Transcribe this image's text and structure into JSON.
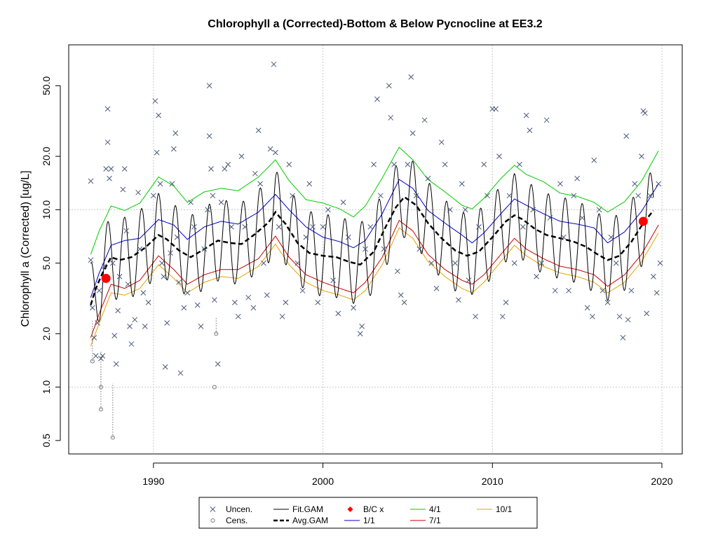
{
  "chart_data": {
    "type": "line",
    "title": "Chlorophyll a (Corrected)-Bottom & Below Pycnocline at EE3.2",
    "xlabel": "",
    "ylabel": "Chlorophyll a (Corrected) [ug/L]",
    "xlim": [
      1985.0,
      2021.2
    ],
    "ylim": [
      0.42,
      85
    ],
    "y_scale": "log",
    "x_ticks": [
      1990,
      2000,
      2010,
      2020
    ],
    "y_ticks": [
      0.5,
      1.0,
      2.0,
      5.0,
      10.0,
      20.0,
      50.0
    ],
    "y_tick_labels": [
      "0.5",
      "1.0",
      "2.0",
      "5.0",
      "10.0",
      "20.0",
      "50.0"
    ],
    "grid": true,
    "legend_position": "bottom",
    "colors": {
      "points": "#4a5a7a",
      "fit_gam": "#000000",
      "avg_gam": "#000000",
      "jan1": "#0000cc",
      "apr1": "#00cc00",
      "jul1": "#cc0000",
      "oct1": "#e6a000",
      "bc": "#ff0000",
      "grid": "#c8c8c8"
    },
    "legend": [
      {
        "label": "Uncen.",
        "style": "cross"
      },
      {
        "label": "Cens.",
        "style": "circle"
      },
      {
        "label": "Fit.GAM",
        "style": "solid-black"
      },
      {
        "label": "Avg.GAM",
        "style": "dashed-black"
      },
      {
        "label": "B/C x",
        "style": "red-diamond"
      },
      {
        "label": "1/1",
        "style": "blue-line"
      },
      {
        "label": "4/1",
        "style": "green-line"
      },
      {
        "label": "7/1",
        "style": "red-line"
      },
      {
        "label": "10/1",
        "style": "orange-line"
      }
    ],
    "avg_gam": {
      "x": [
        1986.3,
        1986.6,
        1987.0,
        1987.5,
        1988.0,
        1988.7,
        1989.5,
        1990.3,
        1990.8,
        1991.5,
        1992.2,
        1993.0,
        1993.8,
        1994.5,
        1995.2,
        1996.0,
        1996.8,
        1997.2,
        1997.8,
        1998.5,
        1999.2,
        2000.0,
        2000.8,
        2001.5,
        2002.2,
        2003.0,
        2003.7,
        2004.3,
        2004.8,
        2005.5,
        2006.2,
        2007.0,
        2007.8,
        2008.5,
        2009.2,
        2010.0,
        2010.8,
        2011.3,
        2011.8,
        2012.5,
        2013.2,
        2014.0,
        2014.8,
        2015.5,
        2016.2,
        2016.8,
        2017.5,
        2018.2,
        2018.9,
        2019.5
      ],
      "y": [
        2.9,
        3.6,
        4.4,
        5.4,
        5.2,
        5.4,
        6.1,
        7.2,
        6.8,
        5.9,
        5.4,
        6.0,
        6.7,
        6.5,
        6.4,
        7.3,
        8.5,
        9.7,
        8.3,
        6.5,
        5.7,
        5.5,
        5.4,
        5.1,
        4.9,
        5.8,
        8.0,
        10.3,
        11.8,
        10.6,
        8.4,
        6.9,
        5.9,
        5.5,
        5.8,
        7.0,
        8.6,
        9.3,
        8.8,
        7.8,
        7.2,
        6.9,
        6.6,
        6.2,
        5.6,
        5.2,
        5.5,
        6.6,
        8.4,
        9.9
      ]
    },
    "fit_gam": {
      "peak_month": 0.3,
      "trough_month": 0.7,
      "upper_ratio": 1.35,
      "lower_ratio": 0.62
    },
    "seasonal_1_1": {
      "x": [
        1986.3,
        1986.8,
        1987.5,
        1988.3,
        1989.2,
        1990.3,
        1991.2,
        1992.0,
        1993.0,
        1994.0,
        1995.0,
        1996.2,
        1997.2,
        1998.0,
        1999.0,
        2000.0,
        2001.0,
        2001.8,
        2002.5,
        2003.5,
        2004.5,
        2005.3,
        2006.2,
        2007.2,
        2008.2,
        2008.8,
        2009.5,
        2010.5,
        2011.3,
        2012.0,
        2013.0,
        2014.0,
        2015.0,
        2016.0,
        2016.8,
        2017.8,
        2018.8,
        2019.8
      ],
      "y": [
        3.2,
        4.4,
        6.3,
        6.7,
        6.9,
        8.8,
        8.2,
        6.8,
        8.0,
        8.6,
        8.3,
        9.7,
        12.2,
        10.0,
        8.0,
        7.0,
        6.6,
        6.1,
        6.7,
        9.5,
        14.8,
        13.2,
        9.9,
        8.4,
        7.2,
        6.5,
        7.4,
        9.5,
        11.5,
        10.6,
        9.5,
        8.6,
        8.3,
        7.9,
        6.5,
        7.5,
        9.8,
        14.0
      ]
    },
    "seasonal_4_1": {
      "x": [
        1986.3,
        1986.8,
        1987.5,
        1988.3,
        1989.2,
        1990.3,
        1991.2,
        1992.0,
        1993.0,
        1994.0,
        1995.0,
        1996.2,
        1997.2,
        1998.0,
        1999.0,
        2000.0,
        2001.0,
        2001.8,
        2002.5,
        2003.5,
        2004.5,
        2005.3,
        2006.2,
        2007.2,
        2008.2,
        2008.8,
        2009.5,
        2010.5,
        2011.3,
        2012.0,
        2013.0,
        2014.0,
        2015.0,
        2016.0,
        2016.8,
        2017.8,
        2018.8,
        2019.8
      ],
      "y": [
        5.6,
        7.6,
        10.5,
        9.9,
        10.9,
        15.3,
        13.6,
        11.0,
        12.6,
        13.2,
        12.8,
        15.3,
        19.1,
        14.6,
        11.4,
        10.9,
        10.1,
        9.1,
        10.5,
        15.1,
        22.5,
        19.1,
        14.8,
        12.6,
        10.6,
        10.1,
        11.6,
        15.0,
        17.8,
        15.8,
        14.4,
        12.4,
        11.9,
        11.0,
        9.7,
        11.1,
        14.5,
        21.5
      ]
    },
    "seasonal_7_1": {
      "x": [
        1986.3,
        1986.8,
        1987.5,
        1988.3,
        1989.2,
        1990.3,
        1991.2,
        1992.0,
        1993.0,
        1994.0,
        1995.0,
        1996.2,
        1997.2,
        1998.0,
        1999.0,
        2000.0,
        2001.0,
        2001.8,
        2002.5,
        2003.5,
        2004.5,
        2005.3,
        2006.2,
        2007.2,
        2008.2,
        2008.8,
        2009.5,
        2010.5,
        2011.3,
        2012.0,
        2013.0,
        2014.0,
        2015.0,
        2016.0,
        2016.8,
        2017.8,
        2018.8,
        2019.8
      ],
      "y": [
        1.9,
        2.6,
        3.8,
        3.6,
        4.0,
        5.5,
        4.6,
        3.8,
        4.3,
        4.6,
        4.6,
        5.3,
        7.1,
        5.4,
        4.3,
        3.9,
        3.6,
        3.4,
        3.9,
        5.4,
        8.7,
        7.6,
        5.6,
        4.6,
        4.0,
        3.8,
        4.3,
        5.6,
        6.9,
        6.0,
        5.3,
        4.8,
        4.6,
        4.3,
        3.7,
        4.3,
        5.6,
        8.2
      ]
    },
    "seasonal_10_1": {
      "x": [
        1986.3,
        1986.8,
        1987.5,
        1988.3,
        1989.2,
        1990.3,
        1991.2,
        1992.0,
        1993.0,
        1994.0,
        1995.0,
        1996.2,
        1997.2,
        1998.0,
        1999.0,
        2000.0,
        2001.0,
        2001.8,
        2002.5,
        2003.5,
        2004.5,
        2005.3,
        2006.2,
        2007.2,
        2008.2,
        2008.8,
        2009.5,
        2010.5,
        2011.3,
        2012.0,
        2013.0,
        2014.0,
        2015.0,
        2016.0,
        2016.8,
        2017.8,
        2018.8,
        2019.8
      ],
      "y": [
        1.7,
        2.3,
        3.4,
        3.3,
        3.6,
        4.9,
        4.1,
        3.4,
        3.9,
        4.2,
        4.1,
        4.8,
        6.4,
        4.9,
        3.9,
        3.5,
        3.3,
        3.1,
        3.5,
        4.9,
        7.9,
        6.9,
        5.1,
        4.2,
        3.6,
        3.4,
        3.9,
        5.1,
        6.3,
        5.5,
        4.8,
        4.4,
        4.2,
        3.9,
        3.4,
        3.9,
        5.1,
        7.4
      ]
    },
    "bc_points": [
      {
        "x": 1987.2,
        "y": 4.1
      },
      {
        "x": 2018.9,
        "y": 8.6
      }
    ],
    "censored_points": [
      {
        "x": 1986.4,
        "y": 1.4,
        "upper": 2.4
      },
      {
        "x": 1986.9,
        "y": 0.75,
        "upper": 1.3
      },
      {
        "x": 1986.9,
        "y": 1.0,
        "upper": 1.6
      },
      {
        "x": 1987.6,
        "y": 0.52,
        "upper": 1.05
      },
      {
        "x": 1993.6,
        "y": 1.0,
        "upper": 1.0
      },
      {
        "x": 1993.7,
        "y": 2.0,
        "upper": 2.5
      }
    ],
    "uncensored_points": [
      [
        1986.3,
        14.5
      ],
      [
        1986.3,
        5.2
      ],
      [
        1986.4,
        2.8
      ],
      [
        1986.5,
        1.9
      ],
      [
        1986.6,
        1.5
      ],
      [
        1986.7,
        2.3
      ],
      [
        1986.8,
        3.5
      ],
      [
        1986.9,
        1.45
      ],
      [
        1987.0,
        1.5
      ],
      [
        1987.1,
        4.8
      ],
      [
        1987.2,
        17.0
      ],
      [
        1987.3,
        24.0
      ],
      [
        1987.3,
        37.0
      ],
      [
        1987.4,
        15.0
      ],
      [
        1987.5,
        17.0
      ],
      [
        1987.6,
        5.0
      ],
      [
        1987.7,
        1.95
      ],
      [
        1987.8,
        1.35
      ],
      [
        1987.9,
        2.7
      ],
      [
        1988.0,
        4.2
      ],
      [
        1988.2,
        13.0
      ],
      [
        1988.3,
        17.0
      ],
      [
        1988.4,
        7.6
      ],
      [
        1988.5,
        3.8
      ],
      [
        1988.6,
        2.2
      ],
      [
        1988.7,
        1.75
      ],
      [
        1988.9,
        2.4
      ],
      [
        1989.1,
        12.5
      ],
      [
        1989.2,
        6.0
      ],
      [
        1989.4,
        3.4
      ],
      [
        1989.5,
        2.2
      ],
      [
        1989.7,
        3.0
      ],
      [
        1990.0,
        12.0
      ],
      [
        1990.1,
        41.0
      ],
      [
        1990.2,
        21.0
      ],
      [
        1990.3,
        34.0
      ],
      [
        1990.4,
        14.0
      ],
      [
        1990.5,
        5.0
      ],
      [
        1990.6,
        4.2
      ],
      [
        1990.7,
        1.3
      ],
      [
        1990.8,
        2.3
      ],
      [
        1991.0,
        5.7
      ],
      [
        1991.1,
        14.0
      ],
      [
        1991.2,
        22.0
      ],
      [
        1991.3,
        27.0
      ],
      [
        1991.4,
        7.0
      ],
      [
        1991.5,
        3.9
      ],
      [
        1991.6,
        1.2
      ],
      [
        1991.8,
        2.8
      ],
      [
        1992.0,
        3.4
      ],
      [
        1992.2,
        11.0
      ],
      [
        1992.4,
        8.0
      ],
      [
        1992.6,
        2.9
      ],
      [
        1992.8,
        2.2
      ],
      [
        1993.0,
        6.0
      ],
      [
        1993.2,
        10.0
      ],
      [
        1993.3,
        26.0
      ],
      [
        1993.3,
        50.0
      ],
      [
        1993.4,
        17.0
      ],
      [
        1993.5,
        12.0
      ],
      [
        1993.6,
        3.1
      ],
      [
        1993.8,
        1.35
      ],
      [
        1994.0,
        11.0
      ],
      [
        1994.2,
        17.0
      ],
      [
        1994.4,
        18.0
      ],
      [
        1994.6,
        8.0
      ],
      [
        1994.8,
        3.0
      ],
      [
        1995.0,
        2.5
      ],
      [
        1995.2,
        20.0
      ],
      [
        1995.4,
        8.0
      ],
      [
        1995.6,
        3.2
      ],
      [
        1995.9,
        2.8
      ],
      [
        1996.0,
        16.0
      ],
      [
        1996.2,
        28.0
      ],
      [
        1996.3,
        14.0
      ],
      [
        1996.5,
        5.0
      ],
      [
        1996.7,
        3.3
      ],
      [
        1996.9,
        22.0
      ],
      [
        1997.1,
        66.0
      ],
      [
        1997.2,
        21.0
      ],
      [
        1997.4,
        8.0
      ],
      [
        1997.6,
        2.5
      ],
      [
        1997.8,
        3.0
      ],
      [
        1998.0,
        18.0
      ],
      [
        1998.2,
        12.0
      ],
      [
        1998.5,
        5.0
      ],
      [
        1998.8,
        3.5
      ],
      [
        1999.0,
        7.0
      ],
      [
        1999.2,
        14.0
      ],
      [
        1999.4,
        8.0
      ],
      [
        1999.7,
        3.0
      ],
      [
        2000.0,
        8.0
      ],
      [
        2000.3,
        10.0
      ],
      [
        2000.6,
        4.0
      ],
      [
        2000.9,
        2.6
      ],
      [
        2001.2,
        11.0
      ],
      [
        2001.5,
        7.0
      ],
      [
        2001.8,
        2.8
      ],
      [
        2002.2,
        2.0
      ],
      [
        2002.3,
        2.2
      ],
      [
        2002.5,
        6.0
      ],
      [
        2002.8,
        8.0
      ],
      [
        2003.0,
        18.0
      ],
      [
        2003.2,
        42.0
      ],
      [
        2003.4,
        12.0
      ],
      [
        2003.6,
        6.0
      ],
      [
        2003.9,
        50.0
      ],
      [
        2004.0,
        33.0
      ],
      [
        2004.2,
        18.0
      ],
      [
        2004.4,
        4.5
      ],
      [
        2004.6,
        3.3
      ],
      [
        2004.8,
        3.0
      ],
      [
        2005.0,
        18.0
      ],
      [
        2005.2,
        56.0
      ],
      [
        2005.3,
        27.0
      ],
      [
        2005.5,
        12.0
      ],
      [
        2005.7,
        6.0
      ],
      [
        2006.0,
        32.0
      ],
      [
        2006.2,
        15.0
      ],
      [
        2006.4,
        5.0
      ],
      [
        2006.7,
        3.6
      ],
      [
        2007.0,
        24.0
      ],
      [
        2007.2,
        18.0
      ],
      [
        2007.5,
        10.0
      ],
      [
        2007.8,
        5.0
      ],
      [
        2008.0,
        3.1
      ],
      [
        2008.2,
        14.0
      ],
      [
        2008.4,
        10.0
      ],
      [
        2008.6,
        4.0
      ],
      [
        2009.0,
        2.5
      ],
      [
        2009.2,
        8.0
      ],
      [
        2009.5,
        18.0
      ],
      [
        2009.7,
        12.0
      ],
      [
        2010.0,
        37.0
      ],
      [
        2010.2,
        37.0
      ],
      [
        2010.4,
        20.0
      ],
      [
        2010.6,
        2.5
      ],
      [
        2010.8,
        3.0
      ],
      [
        2011.0,
        12.0
      ],
      [
        2011.3,
        5.0
      ],
      [
        2011.6,
        18.0
      ],
      [
        2011.8,
        8.0
      ],
      [
        2012.0,
        34.0
      ],
      [
        2012.2,
        28.0
      ],
      [
        2012.4,
        10.0
      ],
      [
        2012.6,
        4.2
      ],
      [
        2012.9,
        5.0
      ],
      [
        2013.2,
        32.0
      ],
      [
        2013.4,
        9.0
      ],
      [
        2013.7,
        3.5
      ],
      [
        2014.0,
        14.0
      ],
      [
        2014.2,
        7.0
      ],
      [
        2014.5,
        3.5
      ],
      [
        2014.8,
        12.0
      ],
      [
        2015.0,
        15.0
      ],
      [
        2015.3,
        9.0
      ],
      [
        2015.6,
        2.8
      ],
      [
        2015.9,
        2.5
      ],
      [
        2016.0,
        19.0
      ],
      [
        2016.3,
        10.0
      ],
      [
        2016.5,
        3.5
      ],
      [
        2016.8,
        3.0
      ],
      [
        2017.0,
        7.0
      ],
      [
        2017.3,
        5.0
      ],
      [
        2017.5,
        2.5
      ],
      [
        2017.7,
        1.9
      ],
      [
        2017.9,
        26.0
      ],
      [
        2018.0,
        2.4
      ],
      [
        2018.2,
        3.5
      ],
      [
        2018.4,
        14.0
      ],
      [
        2018.6,
        12.0
      ],
      [
        2018.8,
        20.0
      ],
      [
        2018.9,
        36.0
      ],
      [
        2019.0,
        35.0
      ],
      [
        2019.1,
        2.6
      ],
      [
        2019.3,
        12.0
      ],
      [
        2019.5,
        4.2
      ],
      [
        2019.7,
        3.4
      ],
      [
        2019.8,
        14.0
      ],
      [
        2019.9,
        5.0
      ]
    ]
  }
}
